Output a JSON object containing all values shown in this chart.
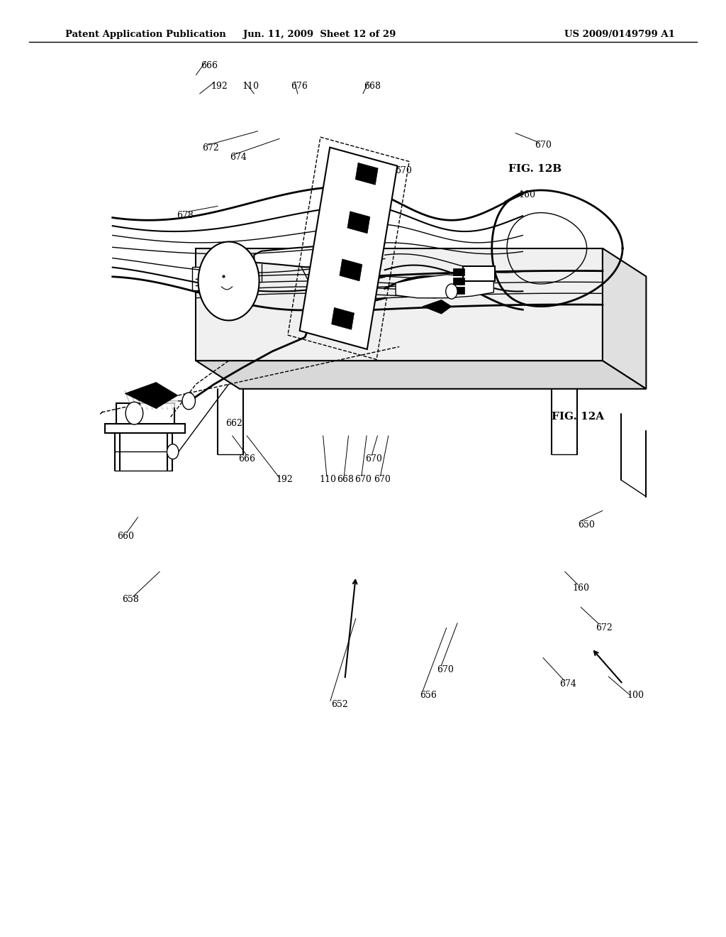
{
  "header_left": "Patent Application Publication",
  "header_mid": "Jun. 11, 2009  Sheet 12 of 29",
  "header_right": "US 2009/0149799 A1",
  "fig_label_12a": "FIG. 12A",
  "fig_label_12b": "FIG. 12B",
  "bg_color": "#ffffff",
  "line_color": "#000000"
}
